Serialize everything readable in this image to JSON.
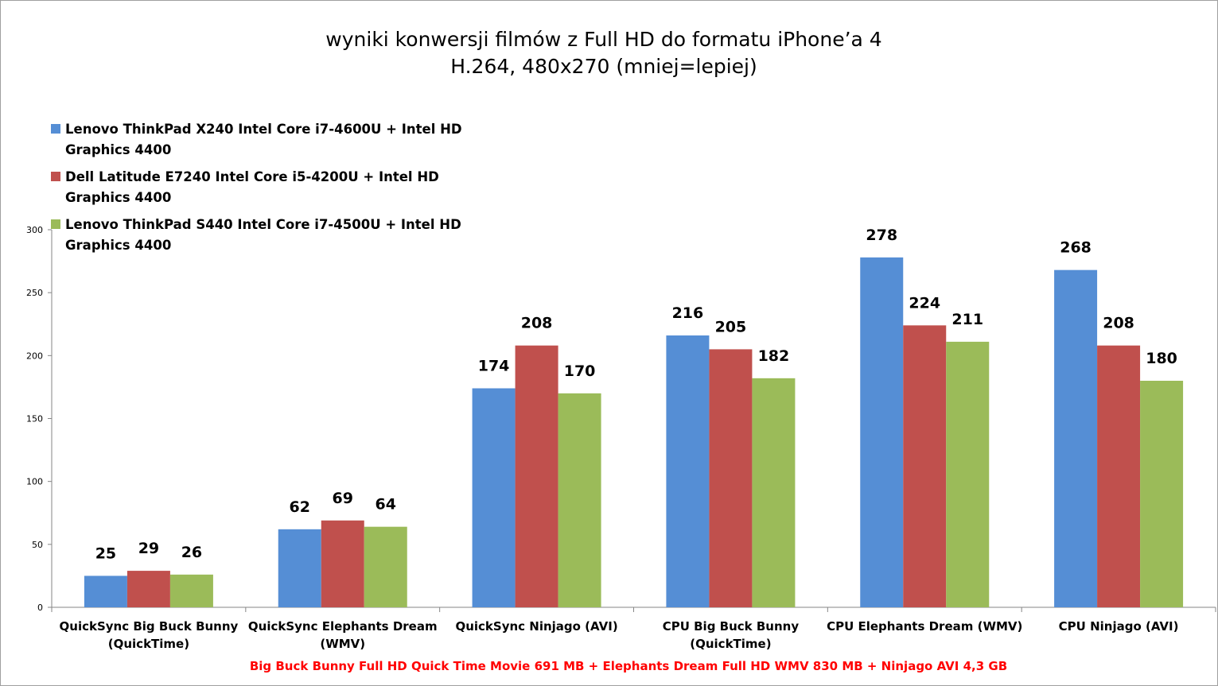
{
  "chart_data": {
    "type": "bar",
    "title_lines": [
      "wyniki konwersji filmów z Full HD do formatu iPhone’a 4",
      "H.264, 480x270 (mniej=lepiej)"
    ],
    "categories": [
      [
        "QuickSync Big Buck Bunny",
        "(QuickTime)"
      ],
      [
        "QuickSync Elephants Dream",
        "(WMV)"
      ],
      [
        "QuickSync Ninjago (AVI)"
      ],
      [
        "CPU Big Buck Bunny",
        "(QuickTime)"
      ],
      [
        "CPU Elephants Dream (WMV)"
      ],
      [
        "CPU Ninjago (AVI)"
      ]
    ],
    "series": [
      {
        "name": "Lenovo ThinkPad  X240 Intel Core i7-4600U + Intel HD Graphics 4400",
        "legend_lines": [
          "Lenovo ThinkPad  X240 Intel Core i7-4600U + Intel HD",
          "Graphics 4400"
        ],
        "color": "#558ed5",
        "values": [
          25,
          62,
          174,
          216,
          278,
          268
        ]
      },
      {
        "name": "Dell Latitude  E7240 Intel Core i5-4200U + Intel HD Graphics 4400",
        "legend_lines": [
          "Dell Latitude  E7240 Intel Core i5-4200U + Intel HD",
          "Graphics 4400"
        ],
        "color": "#c0504d",
        "values": [
          29,
          69,
          208,
          205,
          224,
          208
        ]
      },
      {
        "name": "Lenovo ThinkPad  S440 Intel Core i7-4500U + Intel HD Graphics 4400",
        "legend_lines": [
          "Lenovo ThinkPad  S440 Intel Core i7-4500U + Intel HD",
          "Graphics 4400"
        ],
        "color": "#9bbb59",
        "values": [
          26,
          64,
          170,
          182,
          211,
          180
        ]
      }
    ],
    "ylim": [
      0,
      300
    ],
    "yticks": [
      "0",
      "50",
      "100",
      "150",
      "200",
      "250",
      "300"
    ],
    "grid": false,
    "legend_position": "top-left",
    "axis_color": "#868686",
    "footnote": "Big Buck Bunny Full HD Quick Time Movie 691 MB + Elephants Dream Full HD WMV 830 MB + Ninjago AVI 4,3 GB",
    "xlabel": "",
    "ylabel": ""
  }
}
